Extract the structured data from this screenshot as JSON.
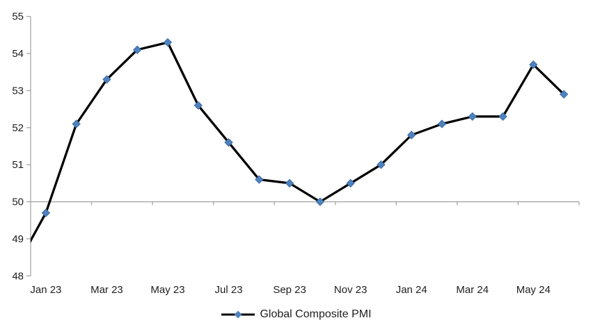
{
  "chart_data": {
    "type": "line",
    "title": "",
    "categories": [
      "Jan 23",
      "Feb 23",
      "Mar 23",
      "Apr 23",
      "May 23",
      "Jun 23",
      "Jul 23",
      "Aug 23",
      "Sep 23",
      "Oct 23",
      "Nov 23",
      "Dec 23",
      "Jan 24",
      "Feb 24",
      "Mar 24",
      "Apr 24",
      "May 24",
      "Jun 24"
    ],
    "series": [
      {
        "name": "Global Composite PMI",
        "values": [
          49.7,
          52.1,
          53.3,
          54.1,
          54.3,
          52.6,
          51.6,
          50.6,
          50.5,
          50.0,
          50.5,
          51.0,
          51.8,
          52.1,
          52.3,
          52.3,
          53.7,
          52.9
        ],
        "marker": "diamond"
      }
    ],
    "offscreen_prior_point": {
      "category": "Dec 22",
      "value": 48.2
    },
    "x_axis": {
      "tick_labels_shown": [
        "Jan 23",
        "Mar 23",
        "May 23",
        "Jul 23",
        "Sep 23",
        "Nov 23",
        "Jan 24",
        "Mar 24",
        "May 24"
      ],
      "label_every": 2,
      "crosses_at": 50
    },
    "y_axis": {
      "min": 48,
      "max": 55,
      "tick_step": 1,
      "tick_labels": [
        "48",
        "49",
        "50",
        "51",
        "52",
        "53",
        "54",
        "55"
      ]
    },
    "grid": false,
    "legend": {
      "position": "bottom"
    },
    "colors": {
      "line": "#000000",
      "marker_fill": "#4F81BD",
      "marker_edge": "#3A6EA5",
      "axis": "#A6A6A6",
      "text": "#1E1E1E",
      "background": "#FFFFFF"
    }
  }
}
